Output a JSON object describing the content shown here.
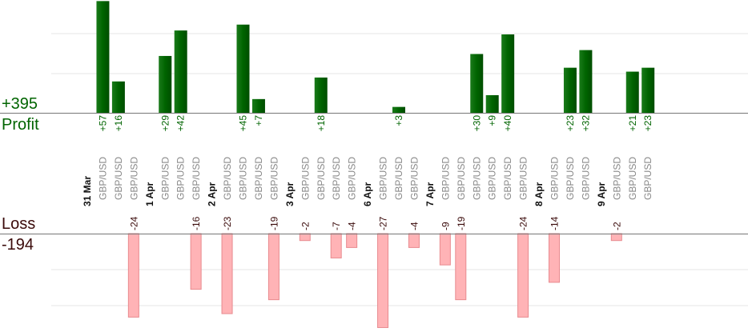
{
  "labels": {
    "profit_total": "+395",
    "profit": "Profit",
    "loss": "Loss",
    "loss_total": "-194"
  },
  "colors": {
    "profit_bar": "#006400",
    "loss_bar": "#ffb3b6",
    "loss_border": "#e88a8f",
    "date_text": "#111111",
    "pair_text": "#888888",
    "profit_text": "#006400",
    "loss_text": "#3a0a0a",
    "grid": "#e6e6e6"
  },
  "chart_data": {
    "type": "bar",
    "pair": "GBP/USD",
    "profit_total": "+395",
    "loss_total": "-194",
    "columns": [
      {
        "date": "31 Mar"
      },
      {
        "value": 57,
        "label": "+57"
      },
      {
        "value": 16,
        "label": "+16"
      },
      {
        "value": -24,
        "label": "-24"
      },
      {
        "date": "1 Apr"
      },
      {
        "value": 29,
        "label": "+29"
      },
      {
        "value": 42,
        "label": "+42"
      },
      {
        "value": -16,
        "label": "-16"
      },
      {
        "date": "2 Apr"
      },
      {
        "value": -23,
        "label": "-23"
      },
      {
        "value": 45,
        "label": "+45"
      },
      {
        "value": 7,
        "label": "+7"
      },
      {
        "value": -19,
        "label": "-19"
      },
      {
        "date": "3 Apr"
      },
      {
        "value": -2,
        "label": "-2"
      },
      {
        "value": 18,
        "label": "+18"
      },
      {
        "value": -7,
        "label": "-7"
      },
      {
        "value": -4,
        "label": "-4"
      },
      {
        "date": "6 Apr"
      },
      {
        "value": -27,
        "label": "-27"
      },
      {
        "value": 3,
        "label": "+3"
      },
      {
        "value": -4,
        "label": "-4"
      },
      {
        "date": "7 Apr"
      },
      {
        "value": -9,
        "label": "-9"
      },
      {
        "value": -19,
        "label": "-19"
      },
      {
        "value": 30,
        "label": "+30"
      },
      {
        "value": 9,
        "label": "+9"
      },
      {
        "value": 40,
        "label": "+40"
      },
      {
        "value": -24,
        "label": "-24"
      },
      {
        "date": "8 Apr"
      },
      {
        "value": -14,
        "label": "-14"
      },
      {
        "value": 23,
        "label": "+23"
      },
      {
        "value": 32,
        "label": "+32"
      },
      {
        "date": "9 Apr"
      },
      {
        "value": -2,
        "label": "-2"
      },
      {
        "value": 21,
        "label": "+21"
      },
      {
        "value": 23,
        "label": "+23"
      }
    ]
  }
}
